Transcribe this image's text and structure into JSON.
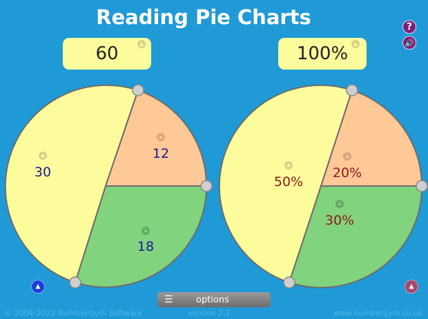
{
  "title": "Reading Pie Charts",
  "header": {
    "help_icon": "?",
    "sound_icon": "speaker"
  },
  "totals": {
    "left": "60",
    "right": "100%"
  },
  "colors": {
    "background": "#1f9ad6",
    "yellow": "#fdfc9c",
    "orange": "#fec897",
    "green": "#82d37e",
    "edge": "#6c6c6c",
    "value_blue": "#1a1a8e",
    "value_red": "#8b1a1a"
  },
  "left_labels": {
    "yellow": "30",
    "orange": "12",
    "green": "18"
  },
  "right_labels": {
    "yellow": "50%",
    "orange": "20%",
    "green": "30%"
  },
  "chart_data": [
    {
      "type": "pie",
      "title": "",
      "labels": [
        "30",
        "12",
        "18"
      ],
      "values": [
        30,
        12,
        18
      ],
      "colors": [
        "#fdfc9c",
        "#fec897",
        "#82d37e"
      ]
    },
    {
      "type": "pie",
      "title": "",
      "labels": [
        "50%",
        "20%",
        "30%"
      ],
      "values": [
        50,
        20,
        30
      ],
      "colors": [
        "#fdfc9c",
        "#fec897",
        "#82d37e"
      ]
    }
  ],
  "footer": {
    "copyright": "© 2004-2022 NumberGym Software",
    "version": "version 2.2",
    "website": "www.numbergym.co.uk",
    "options_label": "options"
  }
}
